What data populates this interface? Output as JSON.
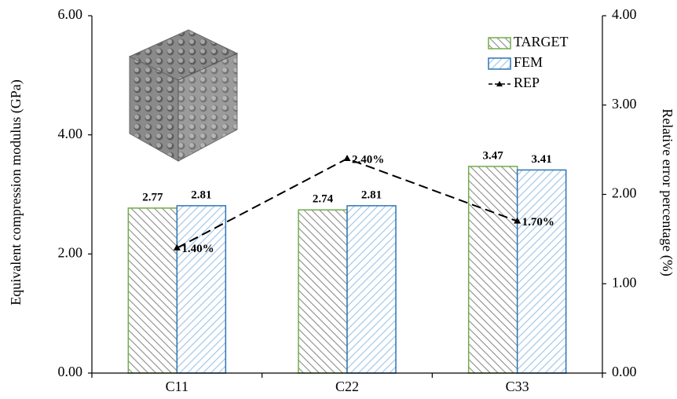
{
  "chart_data": {
    "type": "bar",
    "categories": [
      "C11",
      "C22",
      "C33"
    ],
    "series": [
      {
        "name": "TARGET",
        "type": "bar",
        "color": "#70ad47",
        "values": [
          2.77,
          2.74,
          3.47
        ]
      },
      {
        "name": "FEM",
        "type": "bar",
        "color": "#2e75b6",
        "values": [
          2.81,
          2.81,
          3.41
        ]
      },
      {
        "name": "REP",
        "type": "line",
        "color": "#000000",
        "axis": "y2",
        "values": [
          1.4,
          2.4,
          1.7
        ],
        "value_labels": [
          "1.40%",
          "2.40%",
          "1.70%"
        ]
      }
    ],
    "ylabel": "Equivalent compression modulus (GPa)",
    "y2label": "Relative error percentage (%)",
    "ylim": [
      0,
      6
    ],
    "yticks": [
      {
        "value": 0,
        "label": "0.00"
      },
      {
        "value": 2,
        "label": "2.00"
      },
      {
        "value": 4,
        "label": "4.00"
      },
      {
        "value": 6,
        "label": "6.00"
      }
    ],
    "y2lim": [
      0,
      4
    ],
    "y2ticks": [
      {
        "value": 0,
        "label": "0.00"
      },
      {
        "value": 1,
        "label": "1.00"
      },
      {
        "value": 2,
        "label": "2.00"
      },
      {
        "value": 3,
        "label": "3.00"
      },
      {
        "value": 4,
        "label": "4.00"
      }
    ],
    "legend": "upper-right"
  }
}
